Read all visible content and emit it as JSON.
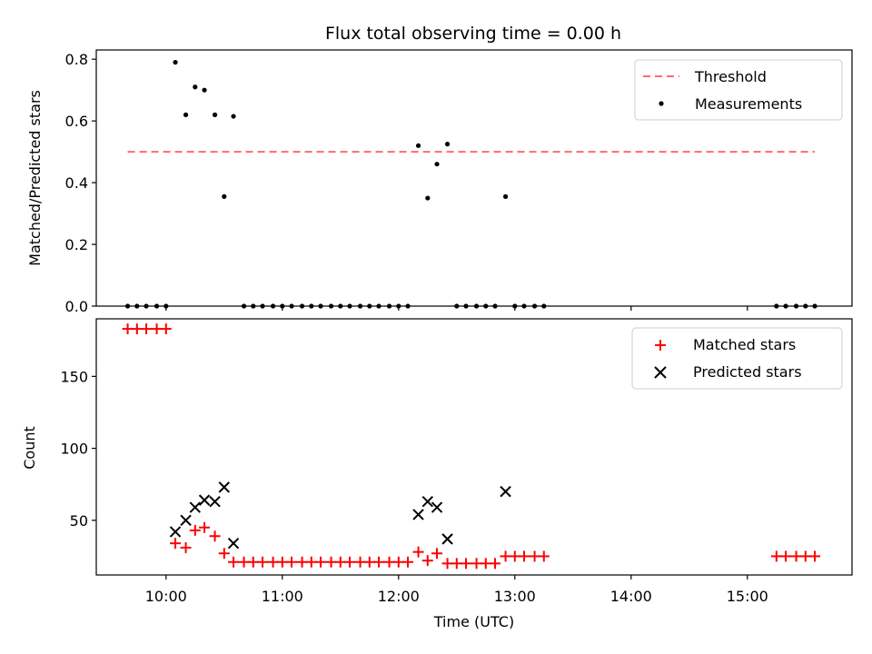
{
  "chart_data": [
    {
      "type": "scatter",
      "title": "Flux total observing time = 0.00 h",
      "ylabel": "Matched/Predicted stars",
      "xlabel": "",
      "xlim": [
        9.4,
        15.9
      ],
      "ylim": [
        0,
        0.83
      ],
      "yticks": [
        0,
        0.2,
        0.4,
        0.6,
        0.8
      ],
      "ytick_labels": [
        "0.0",
        "0.2",
        "0.4",
        "0.6",
        "0.8"
      ],
      "legend": "top-right",
      "series": [
        {
          "name": "Threshold",
          "kind": "line",
          "style": "dashed",
          "color": "#ff6b6b",
          "x": [
            9.67,
            15.58
          ],
          "y": [
            0.5,
            0.5
          ]
        },
        {
          "name": "Measurements",
          "kind": "dot",
          "color": "#000000",
          "x": [
            9.67,
            9.75,
            9.83,
            9.92,
            10.0,
            10.08,
            10.17,
            10.25,
            10.33,
            10.42,
            10.5,
            10.58,
            10.67,
            10.75,
            10.83,
            10.92,
            11.0,
            11.08,
            11.17,
            11.25,
            11.33,
            11.42,
            11.5,
            11.58,
            11.67,
            11.75,
            11.83,
            11.92,
            12.0,
            12.08,
            12.17,
            12.25,
            12.33,
            12.42,
            12.5,
            12.58,
            12.67,
            12.75,
            12.83,
            12.92,
            13.0,
            13.08,
            13.17,
            13.25,
            15.25,
            15.33,
            15.42,
            15.5,
            15.58
          ],
          "y": [
            0,
            0,
            0,
            0,
            0,
            0.79,
            0.62,
            0.71,
            0.7,
            0.62,
            0.355,
            0.615,
            0,
            0,
            0,
            0,
            0,
            0,
            0,
            0,
            0,
            0,
            0,
            0,
            0,
            0,
            0,
            0,
            0,
            0,
            0.52,
            0.35,
            0.46,
            0.525,
            0,
            0,
            0,
            0,
            0,
            0.355,
            0,
            0,
            0,
            0,
            0,
            0,
            0,
            0,
            0
          ]
        }
      ]
    },
    {
      "type": "scatter",
      "title": "",
      "ylabel": "Count",
      "xlabel": "Time (UTC)",
      "xlim": [
        9.4,
        15.9
      ],
      "ylim": [
        12,
        190
      ],
      "yticks": [
        50,
        100,
        150
      ],
      "ytick_labels": [
        "50",
        "100",
        "150"
      ],
      "xticks": [
        10,
        11,
        12,
        13,
        14,
        15
      ],
      "xtick_labels": [
        "10:00",
        "11:00",
        "12:00",
        "13:00",
        "14:00",
        "15:00"
      ],
      "legend": "top-right",
      "series": [
        {
          "name": "Matched stars",
          "kind": "plus",
          "color": "#ff0000",
          "x": [
            9.67,
            9.75,
            9.83,
            9.92,
            10.0,
            10.08,
            10.17,
            10.25,
            10.33,
            10.42,
            10.5,
            10.58,
            10.67,
            10.75,
            10.83,
            10.92,
            11.0,
            11.08,
            11.17,
            11.25,
            11.33,
            11.42,
            11.5,
            11.58,
            11.67,
            11.75,
            11.83,
            11.92,
            12.0,
            12.08,
            12.17,
            12.25,
            12.33,
            12.42,
            12.5,
            12.58,
            12.67,
            12.75,
            12.83,
            12.92,
            13.0,
            13.08,
            13.17,
            13.25,
            15.25,
            15.33,
            15.42,
            15.5,
            15.58
          ],
          "y": [
            183,
            183,
            183,
            183,
            183,
            34,
            31,
            43,
            45,
            39,
            27,
            21,
            21,
            21,
            21,
            21,
            21,
            21,
            21,
            21,
            21,
            21,
            21,
            21,
            21,
            21,
            21,
            21,
            21,
            21,
            28,
            22,
            27,
            20,
            20,
            20,
            20,
            20,
            20,
            25,
            25,
            25,
            25,
            25,
            25,
            25,
            25,
            25,
            25
          ]
        },
        {
          "name": "Predicted stars",
          "kind": "x",
          "color": "#000000",
          "x": [
            10.08,
            10.17,
            10.25,
            10.33,
            10.42,
            10.5,
            10.58,
            12.17,
            12.25,
            12.33,
            12.42,
            12.92
          ],
          "y": [
            42,
            50,
            59,
            64,
            63,
            73,
            34,
            54,
            63,
            59,
            37,
            70
          ]
        }
      ]
    }
  ]
}
